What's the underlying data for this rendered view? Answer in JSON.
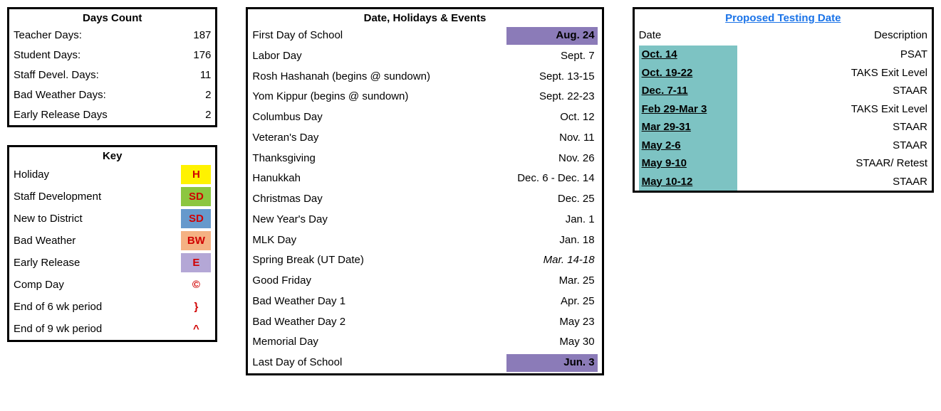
{
  "colors": {
    "border": "#000000",
    "highlight_purple": "#8b7bb8",
    "highlight_teal": "#7dc3c3",
    "key_yellow": "#fff200",
    "key_green": "#8cc63f",
    "key_blue": "#6699cc",
    "key_peach": "#f4b183",
    "key_lav": "#b4a7d6",
    "code_red": "#d00000",
    "link_blue": "#1a73e8"
  },
  "daysCount": {
    "title": "Days Count",
    "rows": [
      {
        "label": "Teacher Days:",
        "value": "187"
      },
      {
        "label": "Student Days:",
        "value": "176"
      },
      {
        "label": "Staff Devel. Days:",
        "value": "11"
      },
      {
        "label": "Bad Weather Days:",
        "value": "2"
      },
      {
        "label": "Early Release Days",
        "value": "2"
      }
    ]
  },
  "key": {
    "title": "Key",
    "rows": [
      {
        "label": "Holiday",
        "code": "H",
        "bg": "#fff200"
      },
      {
        "label": "Staff Development",
        "code": "SD",
        "bg": "#8cc63f"
      },
      {
        "label": "New to District",
        "code": "SD",
        "bg": "#6699cc"
      },
      {
        "label": "Bad Weather",
        "code": "BW",
        "bg": "#f4b183"
      },
      {
        "label": "Early Release",
        "code": "E",
        "bg": "#b4a7d6"
      },
      {
        "label": "Comp Day",
        "code": "©",
        "bg": ""
      },
      {
        "label": "End of 6 wk period",
        "code": "}",
        "bg": ""
      },
      {
        "label": "End of 9 wk period",
        "code": "^",
        "bg": ""
      }
    ]
  },
  "events": {
    "title": "Date, Holidays & Events",
    "rows": [
      {
        "label": "First Day of School",
        "date": "Aug. 24",
        "bold": true,
        "bg": "#8b7bb8"
      },
      {
        "label": "Labor Day",
        "date": "Sept. 7"
      },
      {
        "label": "Rosh Hashanah (begins @ sundown)",
        "date": "Sept. 13-15"
      },
      {
        "label": "Yom Kippur (begins @ sundown)",
        "date": "Sept. 22-23"
      },
      {
        "label": "Columbus Day",
        "date": "Oct. 12"
      },
      {
        "label": "Veteran's Day",
        "date": "Nov. 11"
      },
      {
        "label": "Thanksgiving",
        "date": "Nov. 26"
      },
      {
        "label": "Hanukkah",
        "date": "Dec. 6 - Dec. 14"
      },
      {
        "label": "Christmas Day",
        "date": "Dec. 25"
      },
      {
        "label": "New Year's Day",
        "date": "Jan. 1"
      },
      {
        "label": "MLK Day",
        "date": "Jan. 18"
      },
      {
        "label": "Spring Break (UT Date)",
        "date": "Mar. 14-18",
        "italic": true
      },
      {
        "label": "Good Friday",
        "date": "Mar. 25"
      },
      {
        "label": "Bad Weather Day 1",
        "date": "Apr. 25"
      },
      {
        "label": "Bad Weather Day 2",
        "date": "May 23"
      },
      {
        "label": "Memorial Day",
        "date": "May 30"
      },
      {
        "label": "Last Day of School",
        "date": "Jun. 3",
        "bold": true,
        "bg": "#8b7bb8"
      }
    ]
  },
  "testing": {
    "title": "Proposed Testing Date",
    "head": {
      "date": "Date",
      "desc": "Description"
    },
    "rows": [
      {
        "date": "Oct. 14",
        "desc": "PSAT"
      },
      {
        "date": "Oct. 19-22",
        "desc": "TAKS Exit Level"
      },
      {
        "date": "Dec. 7-11",
        "desc": "STAAR"
      },
      {
        "date": "Feb 29-Mar 3",
        "desc": "TAKS Exit Level"
      },
      {
        "date": "Mar 29-31",
        "desc": "STAAR"
      },
      {
        "date": "May 2-6",
        "desc": "STAAR"
      },
      {
        "date": "May 9-10",
        "desc": "STAAR/ Retest"
      },
      {
        "date": "May 10-12",
        "desc": "STAAR"
      }
    ],
    "date_bg": "#7dc3c3"
  }
}
